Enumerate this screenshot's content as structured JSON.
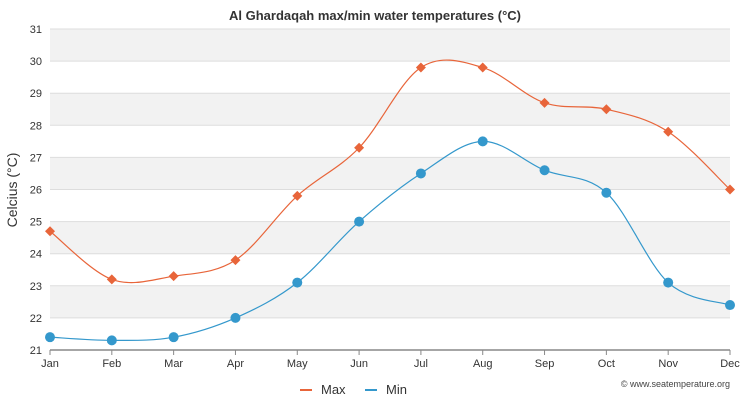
{
  "chart_data": {
    "type": "line",
    "title": "Al Ghardaqah max/min water temperatures (°C)",
    "xlabel": "",
    "ylabel": "Celcius (°C)",
    "categories": [
      "Jan",
      "Feb",
      "Mar",
      "Apr",
      "May",
      "Jun",
      "Jul",
      "Aug",
      "Sep",
      "Oct",
      "Nov",
      "Dec"
    ],
    "ylim": [
      21,
      31
    ],
    "yticks": [
      21,
      22,
      23,
      24,
      25,
      26,
      27,
      28,
      29,
      30,
      31
    ],
    "grid": true,
    "legend_position": "bottom-center",
    "series": [
      {
        "name": "Max",
        "color": "#e8653a",
        "marker": "diamond",
        "values": [
          24.7,
          23.2,
          23.3,
          23.8,
          25.8,
          27.3,
          29.8,
          29.8,
          28.7,
          28.5,
          27.8,
          26.0
        ]
      },
      {
        "name": "Min",
        "color": "#3498cc",
        "marker": "circle",
        "values": [
          21.4,
          21.3,
          21.4,
          22.0,
          23.1,
          25.0,
          26.5,
          27.5,
          26.6,
          25.9,
          23.1,
          22.4
        ]
      }
    ]
  },
  "credit": "© www.seatemperature.org"
}
